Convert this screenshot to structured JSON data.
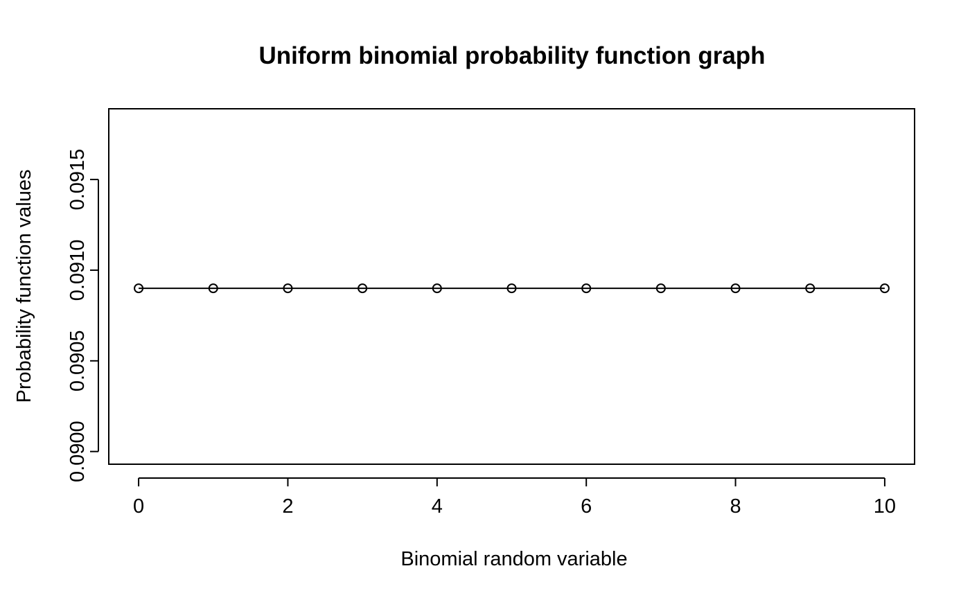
{
  "chart_data": {
    "type": "line",
    "title": "Uniform binomial probability function graph",
    "xlabel": "Binomial random variable",
    "ylabel": "Probability function values",
    "x": [
      0,
      1,
      2,
      3,
      4,
      5,
      6,
      7,
      8,
      9,
      10
    ],
    "series": [
      {
        "name": "Probability function values",
        "values": [
          0.0909,
          0.0909,
          0.0909,
          0.0909,
          0.0909,
          0.0909,
          0.0909,
          0.0909,
          0.0909,
          0.0909,
          0.0909
        ]
      }
    ],
    "xlim": [
      -0.4,
      10.4
    ],
    "ylim": [
      0.08993,
      0.09189
    ],
    "x_ticks": [
      0,
      2,
      4,
      6,
      8,
      10
    ],
    "x_tick_labels": [
      "0",
      "2",
      "4",
      "6",
      "8",
      "10"
    ],
    "y_ticks": [
      0.09,
      0.0905,
      0.091,
      0.0915
    ],
    "y_tick_labels": [
      "0.0900",
      "0.0905",
      "0.0910",
      "0.0915"
    ],
    "marker": "open-circle",
    "grid": false,
    "legend": "none"
  }
}
